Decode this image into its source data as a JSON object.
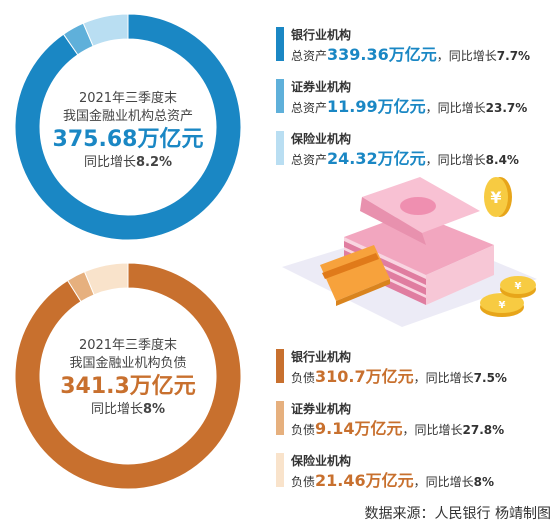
{
  "chart_data": [
    {
      "type": "pie",
      "center": {
        "line1": "2021年三季度末",
        "line2": "我国金融业机构总资产",
        "total": "375.68万亿元",
        "growth_prefix": "同比增长",
        "growth_value": "8.2%"
      },
      "slices": [
        {
          "name": "银行业机构",
          "prefix": "总资产",
          "value": 339.36,
          "value_label": "339.36万亿元",
          "growth_prefix": "，同比增长",
          "growth": "7.7%",
          "color": "#1a87c4"
        },
        {
          "name": "证券业机构",
          "prefix": "总资产",
          "value": 11.99,
          "value_label": "11.99万亿元",
          "growth_prefix": "，同比增长",
          "growth": "23.7%",
          "color": "#5fb0da"
        },
        {
          "name": "保险业机构",
          "prefix": "总资产",
          "value": 24.32,
          "value_label": "24.32万亿元",
          "growth_prefix": "，同比增长",
          "growth": "8.4%",
          "color": "#b9def2"
        }
      ]
    },
    {
      "type": "pie",
      "center": {
        "line1": "2021年三季度末",
        "line2": "我国金融业机构负债",
        "total": "341.3万亿元",
        "growth_prefix": "同比增长",
        "growth_value": "8%"
      },
      "slices": [
        {
          "name": "银行业机构",
          "prefix": "负债",
          "value": 310.7,
          "value_label": "310.7万亿元",
          "growth_prefix": "，同比增长",
          "growth": "7.5%",
          "color": "#c8702e"
        },
        {
          "name": "证券业机构",
          "prefix": "负债",
          "value": 9.14,
          "value_label": "9.14万亿元",
          "growth_prefix": "，同比增长",
          "growth": "27.8%",
          "color": "#e6b07e"
        },
        {
          "name": "保险业机构",
          "prefix": "负债",
          "value": 21.46,
          "value_label": "21.46万亿元",
          "growth_prefix": "，同比增长",
          "growth": "8%",
          "color": "#f9e3cb"
        }
      ]
    }
  ],
  "theme": {
    "blue_text": "#1a87c4",
    "orange_text": "#c8702e"
  },
  "illustration": "money-stack-card-coins-icon",
  "source": "数据来源：人民银行   杨靖制图"
}
